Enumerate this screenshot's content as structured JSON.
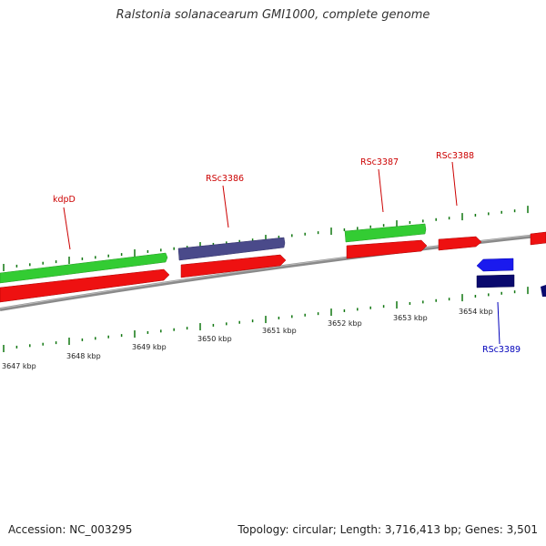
{
  "title": "Ralstonia solanacearum GMI1000, complete genome",
  "footer": {
    "accession": "Accession: NC_003295",
    "summary": "Topology: circular; Length: 3,716,413 bp; Genes: 3,501"
  },
  "colors": {
    "forward_red": "#ee1111",
    "forward_green": "#33cc33",
    "forward_purple": "#4a4a8a",
    "reverse_blue": "#1a1aee",
    "reverse_navy": "#0a0a6e",
    "label_red": "#cc0000",
    "label_blue": "#0000bb",
    "tick_green": "#117711",
    "backbone": "#8a8a8a"
  },
  "scale_labels": [
    "3647 kbp",
    "3648 kbp",
    "3649 kbp",
    "3650 kbp",
    "3651 kbp",
    "3652 kbp",
    "3653 kbp",
    "3654 kbp"
  ],
  "gene_labels": [
    {
      "id": "kdpD",
      "text": "kdpD",
      "strand": "forward"
    },
    {
      "id": "RSc3386",
      "text": "RSc3386",
      "strand": "forward"
    },
    {
      "id": "RSc3387",
      "text": "RSc3387",
      "strand": "forward"
    },
    {
      "id": "RSc3388",
      "text": "RSc3388",
      "strand": "forward"
    },
    {
      "id": "RSc3389",
      "text": "RSc3389",
      "strand": "reverse"
    }
  ]
}
